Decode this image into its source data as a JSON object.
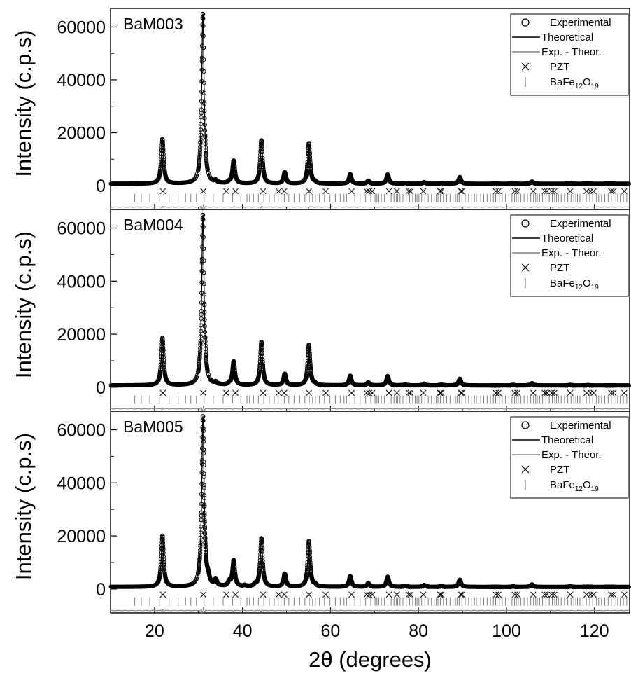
{
  "chart_data": [
    {
      "type": "line",
      "panel_label": "BaM003",
      "ylabel": "Intensity (c.p.s)",
      "xlabel": "",
      "xlim": [
        10,
        128
      ],
      "ylim": [
        -9000,
        67000
      ],
      "yticks": [
        0,
        20000,
        40000,
        60000
      ],
      "legend_position": "top-right",
      "legend": [
        "Experimental",
        "Theoretical",
        "Exp. - Theor.",
        "PZT",
        "BaFe12O19"
      ],
      "background": 700,
      "peak_width": 0.32,
      "peaks": [
        {
          "x": 21.8,
          "y": 17500
        },
        {
          "x": 31.0,
          "y": 65000
        },
        {
          "x": 33.9,
          "y": 1500
        },
        {
          "x": 37.0,
          "y": 1200
        },
        {
          "x": 38.0,
          "y": 9200
        },
        {
          "x": 44.3,
          "y": 17000
        },
        {
          "x": 49.6,
          "y": 5000
        },
        {
          "x": 55.1,
          "y": 16000
        },
        {
          "x": 56.5,
          "y": 1200
        },
        {
          "x": 64.5,
          "y": 4300
        },
        {
          "x": 68.6,
          "y": 1800
        },
        {
          "x": 73.0,
          "y": 4200
        },
        {
          "x": 77.0,
          "y": 1000
        },
        {
          "x": 81.3,
          "y": 1300
        },
        {
          "x": 85.2,
          "y": 1000
        },
        {
          "x": 89.4,
          "y": 3200
        },
        {
          "x": 97.5,
          "y": 700
        },
        {
          "x": 101.5,
          "y": 900
        },
        {
          "x": 105.8,
          "y": 1500
        },
        {
          "x": 114.5,
          "y": 900
        },
        {
          "x": 118.5,
          "y": 800
        },
        {
          "x": 123.5,
          "y": 700
        }
      ]
    },
    {
      "type": "line",
      "panel_label": "BaM004",
      "ylabel": "Intensity (c.p.s)",
      "xlabel": "",
      "xlim": [
        10,
        128
      ],
      "ylim": [
        -9000,
        67000
      ],
      "yticks": [
        0,
        20000,
        40000,
        60000
      ],
      "legend_position": "top-right",
      "legend": [
        "Experimental",
        "Theoretical",
        "Exp. - Theor.",
        "PZT",
        "BaFe12O19"
      ],
      "background": 700,
      "peak_width": 0.32,
      "peaks": [
        {
          "x": 21.8,
          "y": 18500
        },
        {
          "x": 31.0,
          "y": 65000
        },
        {
          "x": 33.9,
          "y": 1500
        },
        {
          "x": 37.0,
          "y": 1200
        },
        {
          "x": 38.0,
          "y": 9500
        },
        {
          "x": 44.3,
          "y": 17000
        },
        {
          "x": 49.6,
          "y": 5000
        },
        {
          "x": 55.1,
          "y": 16000
        },
        {
          "x": 56.5,
          "y": 1200
        },
        {
          "x": 64.5,
          "y": 4300
        },
        {
          "x": 68.6,
          "y": 1800
        },
        {
          "x": 73.0,
          "y": 4200
        },
        {
          "x": 77.0,
          "y": 1000
        },
        {
          "x": 81.3,
          "y": 1300
        },
        {
          "x": 85.2,
          "y": 1000
        },
        {
          "x": 89.4,
          "y": 3200
        },
        {
          "x": 97.5,
          "y": 700
        },
        {
          "x": 101.5,
          "y": 900
        },
        {
          "x": 105.8,
          "y": 1500
        },
        {
          "x": 114.5,
          "y": 900
        },
        {
          "x": 118.5,
          "y": 800
        },
        {
          "x": 123.5,
          "y": 700
        }
      ]
    },
    {
      "type": "line",
      "panel_label": "BaM005",
      "ylabel": "Intensity (c.p.s)",
      "xlabel": "2θ (degrees)",
      "xlim": [
        10,
        128
      ],
      "ylim": [
        -9000,
        67000
      ],
      "yticks": [
        0,
        20000,
        40000,
        60000
      ],
      "xticks": [
        20,
        40,
        60,
        80,
        100,
        120
      ],
      "legend_position": "top-right",
      "legend": [
        "Experimental",
        "Theoretical",
        "Exp. - Theor.",
        "PZT",
        "BaFe12O19"
      ],
      "background": 800,
      "peak_width": 0.32,
      "peaks": [
        {
          "x": 21.8,
          "y": 20000
        },
        {
          "x": 31.0,
          "y": 65000
        },
        {
          "x": 32.2,
          "y": 3000
        },
        {
          "x": 33.9,
          "y": 3200
        },
        {
          "x": 37.0,
          "y": 2500
        },
        {
          "x": 38.0,
          "y": 10500
        },
        {
          "x": 40.5,
          "y": 1200
        },
        {
          "x": 42.9,
          "y": 1500
        },
        {
          "x": 44.3,
          "y": 19000
        },
        {
          "x": 49.6,
          "y": 5700
        },
        {
          "x": 55.1,
          "y": 18000
        },
        {
          "x": 56.5,
          "y": 1500
        },
        {
          "x": 64.5,
          "y": 4800
        },
        {
          "x": 68.6,
          "y": 2200
        },
        {
          "x": 73.0,
          "y": 4600
        },
        {
          "x": 77.0,
          "y": 1200
        },
        {
          "x": 81.3,
          "y": 1500
        },
        {
          "x": 85.2,
          "y": 1100
        },
        {
          "x": 89.4,
          "y": 3500
        },
        {
          "x": 97.5,
          "y": 800
        },
        {
          "x": 101.5,
          "y": 1000
        },
        {
          "x": 105.8,
          "y": 1700
        },
        {
          "x": 114.5,
          "y": 1000
        },
        {
          "x": 118.5,
          "y": 900
        },
        {
          "x": 123.5,
          "y": 800
        }
      ]
    }
  ],
  "reflections": {
    "pzt_x": [
      21.9,
      31.1,
      36.3,
      38.4,
      44.7,
      48.2,
      49.5,
      55.1,
      58.9,
      64.8,
      68.2,
      68.8,
      69.5,
      73.3,
      75.1,
      77.8,
      78.2,
      81.1,
      84.9,
      85.2,
      89.6,
      89.9,
      97.6,
      98.2,
      101.9,
      102.5,
      106.1,
      108.7,
      109.2,
      110.3,
      110.9,
      114.5,
      118.2,
      119.1,
      119.8,
      123.8,
      124.3,
      126.8
    ],
    "pzt_offset": -2100,
    "bafe_x_start": 15.5,
    "bafe_x_end": 127.5,
    "bafe_offset": -4700,
    "diff_offset": -8100,
    "diff_noise_amp": 150
  },
  "colors": {
    "experimental": "#000000",
    "theoretical": "#000000",
    "difference": "#808080",
    "pzt": "#000000",
    "bafe": "#808080",
    "axes": "#000000"
  }
}
